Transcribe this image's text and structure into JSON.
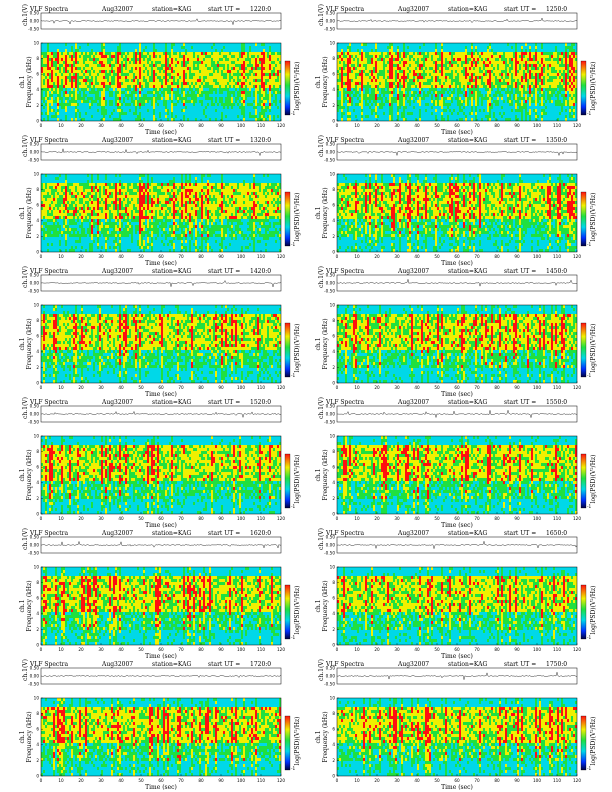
{
  "colors": {
    "low": "#00d8e8",
    "mid": "#20e040",
    "high": "#f0f000",
    "peak": "#ff1010",
    "grid_line": "#000000"
  },
  "labels": {
    "title_left": "VLF Spectra",
    "date": "Aug32007",
    "station": "station=KAG",
    "start_ut": "start  UT =",
    "ch_axis": "ch.1(V)",
    "freq_axis_line1": "ch.1",
    "freq_axis_line2": "Frequency  (kHz)",
    "time_axis": "Time  (sec)",
    "colorbar_label": "log(PSD)(V²/Hz)"
  },
  "panels": [
    {
      "ut": "1220:0"
    },
    {
      "ut": "1250:0"
    },
    {
      "ut": "1320:0"
    },
    {
      "ut": "1350:0"
    },
    {
      "ut": "1420:0"
    },
    {
      "ut": "1450:0"
    },
    {
      "ut": "1520:0"
    },
    {
      "ut": "1550:0"
    },
    {
      "ut": "1620:0"
    },
    {
      "ut": "1650:0"
    },
    {
      "ut": "1720:0"
    },
    {
      "ut": "1750:0"
    }
  ],
  "chart_data": {
    "type": "heatmap",
    "x": {
      "label": "Time  (sec)",
      "range": [
        0,
        120
      ],
      "ticks": [
        0,
        10,
        20,
        30,
        40,
        50,
        60,
        70,
        80,
        90,
        100,
        110,
        120
      ]
    },
    "y": {
      "label": "Frequency  (kHz)",
      "range": [
        0,
        10
      ],
      "ticks": [
        0,
        2,
        4,
        6,
        8,
        10
      ]
    },
    "waveform_y": {
      "label": "ch.1(V)",
      "ticks": [
        "0.50",
        "0.00",
        "-0.50"
      ]
    },
    "colorbar": {
      "label": "log(PSD)(V²/Hz)",
      "range": [
        -1,
        1
      ]
    }
  }
}
